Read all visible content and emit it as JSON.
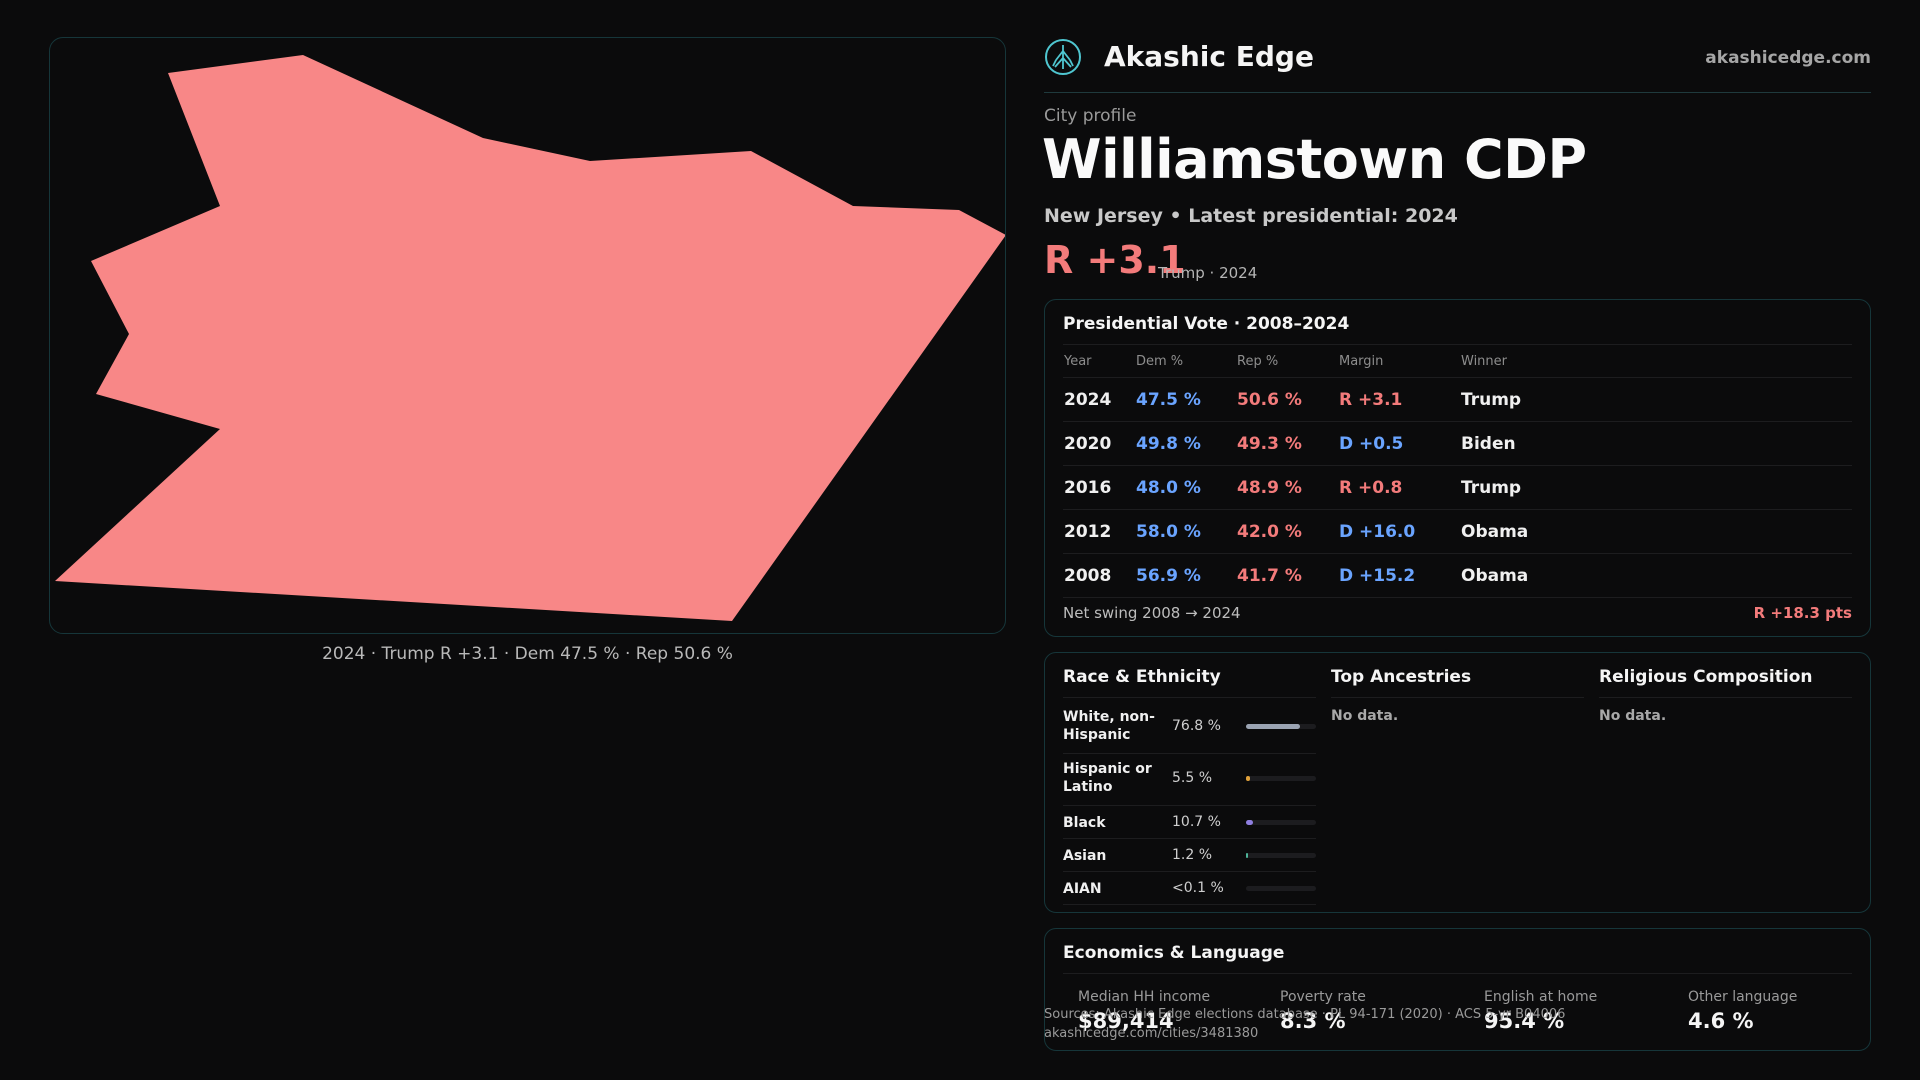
{
  "map": {
    "caption": "2024 · Trump  R +3.1 · Dem 47.5 % · Rep 50.6 %",
    "fill_color": "#f88787",
    "border_color": "#16363a"
  },
  "header": {
    "brand": "Akashic Edge",
    "site": "akashicedge.com",
    "logo_icon": "tree-logo-icon"
  },
  "profile": {
    "kicker": "City profile",
    "title": "Williamstown CDP",
    "subtitle": "New Jersey • Latest presidential: 2024",
    "margin": "R +3.1",
    "margin_note": "Trump · 2024"
  },
  "vote": {
    "title": "Presidential Vote · 2008–2024",
    "columns": [
      "Year",
      "Dem %",
      "Rep %",
      "Margin",
      "Winner"
    ],
    "rows": [
      {
        "year": "2024",
        "dem": "47.5 %",
        "rep": "50.6 %",
        "margin": "R +3.1",
        "winner": "Trump"
      },
      {
        "year": "2020",
        "dem": "49.8 %",
        "rep": "49.3 %",
        "margin": "D +0.5",
        "winner": "Biden"
      },
      {
        "year": "2016",
        "dem": "48.0 %",
        "rep": "48.9 %",
        "margin": "R +0.8",
        "winner": "Trump"
      },
      {
        "year": "2012",
        "dem": "58.0 %",
        "rep": "42.0 %",
        "margin": "D +16.0",
        "winner": "Obama"
      },
      {
        "year": "2008",
        "dem": "56.9 %",
        "rep": "41.7 %",
        "margin": "D +15.2",
        "winner": "Obama"
      }
    ],
    "swing_label": "Net swing 2008 → 2024",
    "swing_value": "R +18.3 pts"
  },
  "race": {
    "title": "Race & Ethnicity",
    "rows": [
      {
        "label": "White, non-Hispanic",
        "pct": "76.8 %",
        "fraction": 0.768,
        "color": "#9aa3b2"
      },
      {
        "label": "Hispanic or Latino",
        "pct": "5.5 %",
        "fraction": 0.055,
        "color": "#e0a13a"
      },
      {
        "label": "Black",
        "pct": "10.7 %",
        "fraction": 0.107,
        "color": "#8f7fe0"
      },
      {
        "label": "Asian",
        "pct": "1.2 %",
        "fraction": 0.012,
        "color": "#4fb59a"
      },
      {
        "label": "AIAN",
        "pct": "<0.1 %",
        "fraction": 0.0,
        "color": "#c0c0c0"
      }
    ]
  },
  "ancestries": {
    "title": "Top Ancestries",
    "empty": "No data."
  },
  "religion": {
    "title": "Religious Composition",
    "empty": "No data."
  },
  "economics": {
    "title": "Economics & Language",
    "stats": [
      {
        "label": "Median HH income",
        "value": "$89,414"
      },
      {
        "label": "Poverty rate",
        "value": "8.3 %"
      },
      {
        "label": "English at home",
        "value": "95.4 %"
      },
      {
        "label": "Other language",
        "value": "4.6 %"
      }
    ]
  },
  "footer": {
    "sources": "Sources: Akashic Edge elections database · PL 94-171 (2020) · ACS 5-yr B04006",
    "url": "akashicedge.com/cities/3481380"
  }
}
